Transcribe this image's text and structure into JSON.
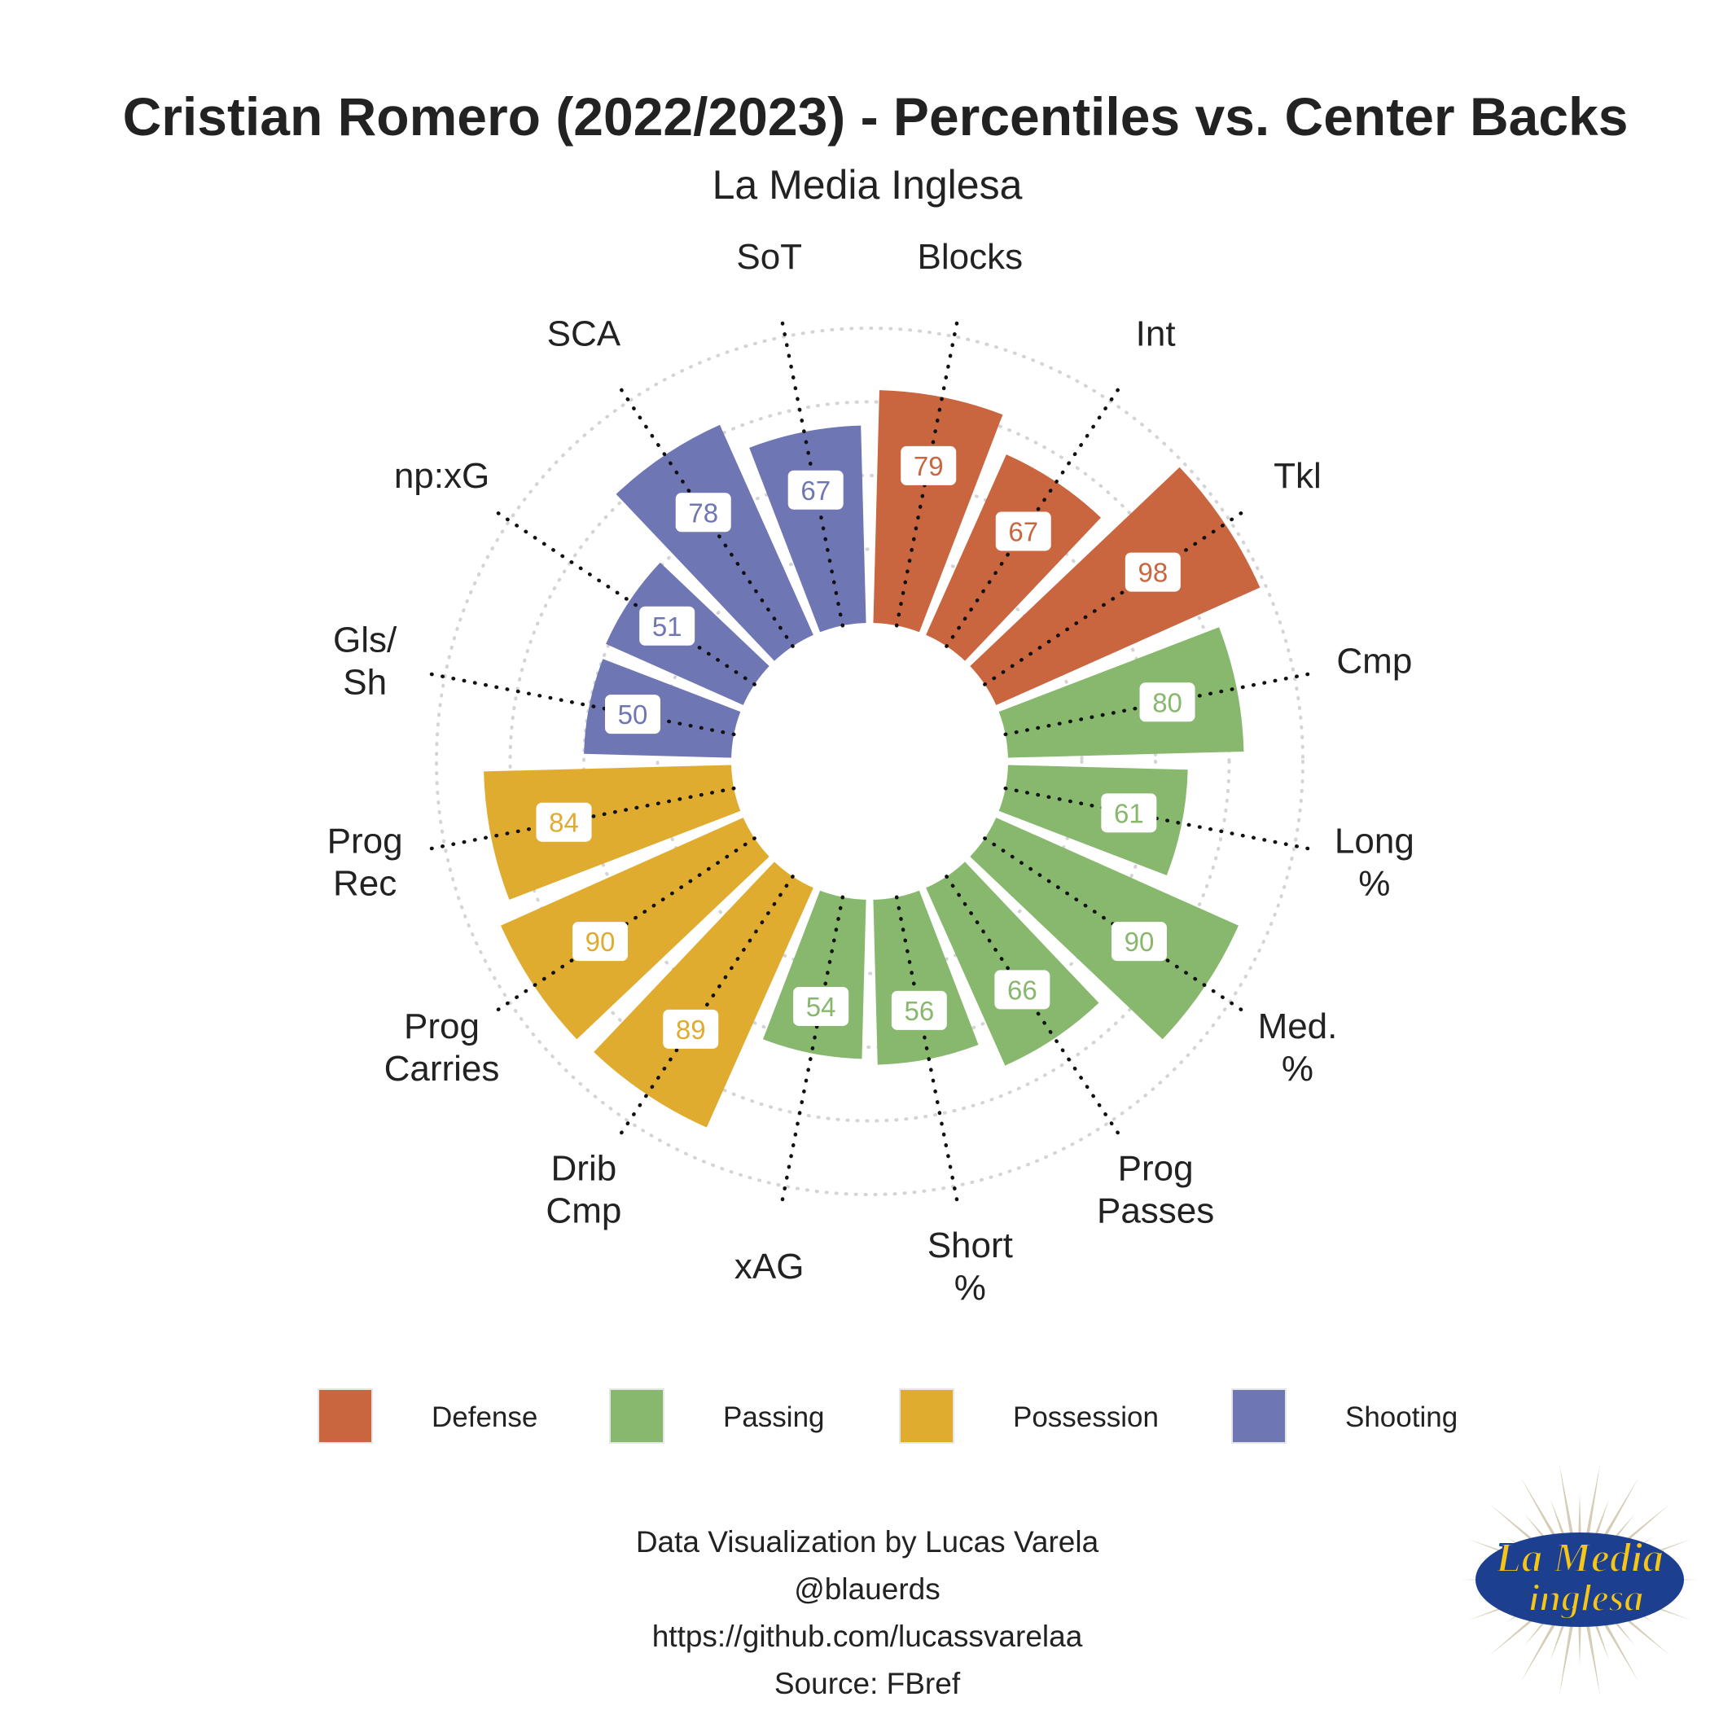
{
  "header": {
    "title": "Cristian Romero (2022/2023) - Percentiles vs. Center Backs",
    "subtitle": "La Media Inglesa"
  },
  "chart_data": {
    "type": "bar",
    "polar": true,
    "title": "Cristian Romero (2022/2023) - Percentiles vs. Center Backs",
    "subtitle": "La Media Inglesa",
    "ylim": [
      0,
      100
    ],
    "grid": true,
    "categories": [
      [
        "Blocks"
      ],
      [
        "Int"
      ],
      [
        "Tkl"
      ],
      [
        "Cmp"
      ],
      [
        "Long",
        "%"
      ],
      [
        "Med.",
        "%"
      ],
      [
        "Prog",
        "Passes"
      ],
      [
        "Short",
        "%"
      ],
      [
        "xAG"
      ],
      [
        "Drib",
        "Cmp"
      ],
      [
        "Prog",
        "Carries"
      ],
      [
        "Prog",
        "Rec"
      ],
      [
        "Gls/",
        "Sh"
      ],
      [
        "np:xG"
      ],
      [
        "SCA"
      ],
      [
        "SoT"
      ]
    ],
    "values": [
      79,
      67,
      98,
      80,
      61,
      90,
      66,
      56,
      54,
      89,
      90,
      84,
      50,
      51,
      78,
      67
    ],
    "groups": [
      "Defense",
      "Defense",
      "Defense",
      "Passing",
      "Passing",
      "Passing",
      "Passing",
      "Passing",
      "Passing",
      "Possession",
      "Possession",
      "Possession",
      "Shooting",
      "Shooting",
      "Shooting",
      "Shooting"
    ],
    "legend": {
      "position": "bottom",
      "entries": [
        {
          "name": "Defense",
          "color": "#c96640"
        },
        {
          "name": "Passing",
          "color": "#87b86e"
        },
        {
          "name": "Possession",
          "color": "#e0ac2f"
        },
        {
          "name": "Shooting",
          "color": "#6f76b4"
        }
      ]
    }
  },
  "credits": {
    "line1": "Data Visualization by Lucas Varela",
    "line2": "@blauerds",
    "line3": "https://github.com/lucassvarelaa",
    "line4": "Source: FBref"
  },
  "logo": {
    "text_top": "La Media",
    "text_bottom": "inglesa",
    "colors": {
      "blue": "#1c3f8f",
      "yellow": "#f5c518",
      "rays": "#c9bfa3"
    }
  }
}
